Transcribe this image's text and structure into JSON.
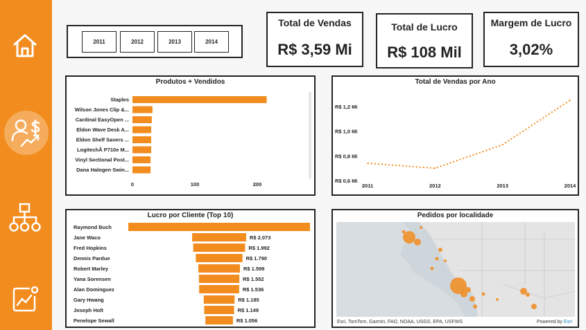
{
  "sidebar": {
    "items": [
      {
        "name": "home",
        "icon": "home-icon"
      },
      {
        "name": "customers-profit",
        "icon": "user-dollar-icon",
        "active": true
      },
      {
        "name": "hierarchy",
        "icon": "hierarchy-icon"
      },
      {
        "name": "report",
        "icon": "chart-report-icon"
      }
    ],
    "accent": "#f28c1e"
  },
  "year_filter": {
    "years": [
      "2011",
      "2012",
      "2013",
      "2014"
    ]
  },
  "kpis": {
    "total_vendas": {
      "title": "Total de Vendas",
      "value": "R$ 3,59 Mi"
    },
    "total_lucro": {
      "title": "Total de Lucro",
      "value": "R$ 108 Mil"
    },
    "margem_lucro": {
      "title": "Margem de Lucro",
      "value": "3,02%"
    }
  },
  "chart_data": [
    {
      "type": "bar",
      "orientation": "horizontal",
      "title": "Produtos + Vendidos",
      "categories": [
        "Staples",
        "Wilson Jones Clip &...",
        "Cardinal EasyOpen ...",
        "Eldon Wave Desk A...",
        "Eldon Shelf Savers ...",
        "LogitechÂ P710e M...",
        "Vinyl Sectional Post...",
        "Dana Halogen Swin..."
      ],
      "values": [
        215,
        32,
        31,
        30,
        30,
        30,
        29,
        29
      ],
      "xlim": [
        0,
        250
      ],
      "xticks": [
        "0",
        "100",
        "200"
      ],
      "color": "#f28c1e"
    },
    {
      "type": "line",
      "title": "Total de Vendas por Ano",
      "x": [
        "2011",
        "2012",
        "2013",
        "2014"
      ],
      "values": [
        0.74,
        0.7,
        0.89,
        1.25
      ],
      "ylim": [
        0.6,
        1.3
      ],
      "yticks": [
        "R$ 0,6 Mi",
        "R$ 0,8 Mi",
        "R$ 1,0 Mi",
        "R$ 1,2 Mi"
      ],
      "ytick_values": [
        0.6,
        0.8,
        1.0,
        1.2
      ],
      "color": "#f28c1e",
      "style": "dotted"
    },
    {
      "type": "bar",
      "orientation": "horizontal-funnel",
      "title": "Lucro por Cliente (Top 10)",
      "categories": [
        "Raymond Buch",
        "Jane Waco",
        "Fred Hopkins",
        "Dennis Pardue",
        "Robert Marley",
        "Yana Sorensen",
        "Alan Dominguez",
        "Gary Hwang",
        "Joseph Holt",
        "Penelope Sewall"
      ],
      "values": [
        6976,
        2073,
        1992,
        1790,
        1599,
        1552,
        1536,
        1185,
        1149,
        1056
      ],
      "labels": [
        "",
        "R$ 2.073",
        "R$ 1.992",
        "R$ 1.790",
        "R$ 1.599",
        "R$ 1.552",
        "R$ 1.536",
        "R$ 1.185",
        "R$ 1.149",
        "R$ 1.056"
      ],
      "color": "#f28c1e"
    }
  ],
  "map": {
    "title": "Pedidos por localidade",
    "attribution": "Esri, TomTom, Garmin, FAO, NOAA, USGS, EPA, USFWS",
    "powered_by": "Powered by",
    "powered_brand": "Esri",
    "bubble_color": "#f28c1e"
  }
}
